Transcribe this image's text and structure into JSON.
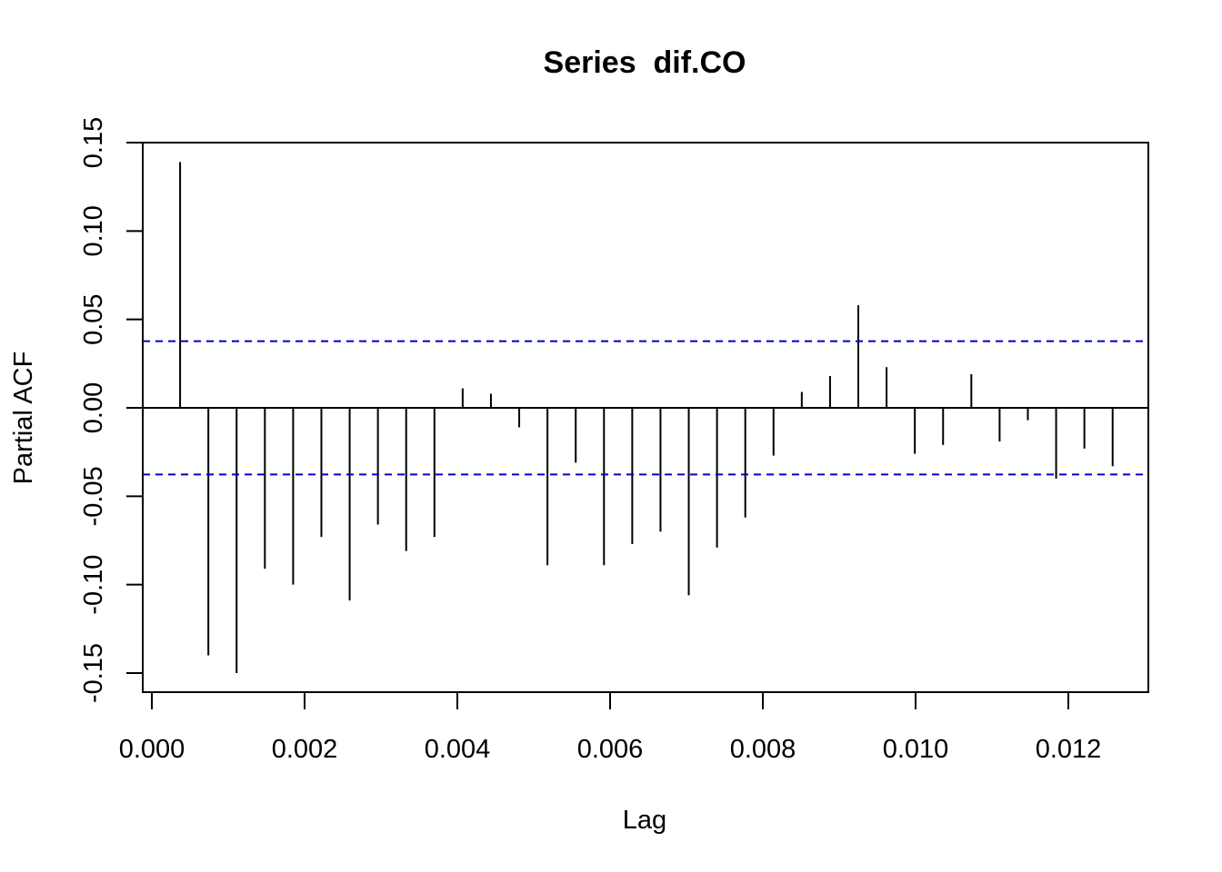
{
  "chart_data": {
    "type": "bar",
    "title": "Series  dif.CO",
    "xlabel": "Lag",
    "ylabel": "Partial ACF",
    "xlim": [
      0.0,
      0.0131
    ],
    "ylim": [
      -0.16,
      0.15
    ],
    "x_ticks": [
      "0.000",
      "0.002",
      "0.004",
      "0.006",
      "0.008",
      "0.010",
      "0.012"
    ],
    "y_ticks": [
      "-0.15",
      "-0.10",
      "-0.05",
      "0.00",
      "0.05",
      "0.10",
      "0.15"
    ],
    "x_tick_values": [
      0.0,
      0.002,
      0.004,
      0.006,
      0.008,
      0.01,
      0.012
    ],
    "y_tick_values": [
      -0.15,
      -0.1,
      -0.05,
      0.0,
      0.05,
      0.1,
      0.15
    ],
    "x": [
      0.00037,
      0.00074,
      0.00111,
      0.00148,
      0.00185,
      0.00222,
      0.00259,
      0.00296,
      0.00333,
      0.0037,
      0.00407,
      0.00444,
      0.00481,
      0.00518,
      0.00555,
      0.00592,
      0.00629,
      0.00666,
      0.00703,
      0.0074,
      0.00777,
      0.00814,
      0.00851,
      0.00888,
      0.00925,
      0.00962,
      0.00999,
      0.01036,
      0.01073,
      0.0111,
      0.01147,
      0.01184,
      0.01221,
      0.01258
    ],
    "values": [
      0.139,
      -0.14,
      -0.15,
      -0.091,
      -0.1,
      -0.073,
      -0.109,
      -0.066,
      -0.081,
      -0.073,
      0.011,
      0.008,
      -0.011,
      -0.089,
      -0.031,
      -0.089,
      -0.077,
      -0.07,
      -0.106,
      -0.079,
      -0.062,
      -0.027,
      0.009,
      0.018,
      0.058,
      0.023,
      -0.026,
      -0.021,
      0.019,
      -0.019,
      -0.007,
      -0.04,
      -0.023,
      -0.033
    ],
    "confidence_band": [
      0.0377,
      -0.0377
    ],
    "colors": {
      "bars": "#000000",
      "confidence_band": "#0000cd",
      "frame": "#000000"
    },
    "grid": false,
    "legend": "none"
  }
}
